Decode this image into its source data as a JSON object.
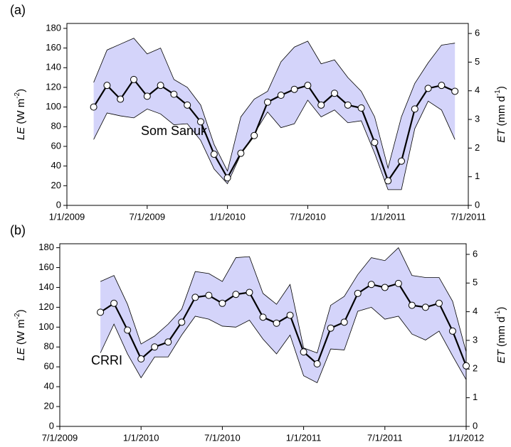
{
  "chart_data": [
    {
      "type": "line",
      "panel_label": "(a)",
      "annotation": "Som Sanuk",
      "ylabel": [
        "LE",
        " (W m",
        "-2",
        ")"
      ],
      "y2label": [
        "ET",
        " (mm d",
        "-1",
        ")"
      ],
      "xlim": [
        "1/1/2009",
        "7/1/2011"
      ],
      "xticks": [
        "1/1/2009",
        "7/1/2009",
        "1/1/2010",
        "7/1/2010",
        "1/1/2011",
        "7/1/2011"
      ],
      "ylim": [
        0,
        185
      ],
      "yticks": [
        0,
        20,
        40,
        60,
        80,
        100,
        120,
        140,
        160,
        180
      ],
      "y2lim": [
        0,
        6.35
      ],
      "y2ticks": [
        0,
        1,
        2,
        3,
        4,
        5,
        6
      ],
      "x": [
        "3/1/2009",
        "4/1/2009",
        "5/1/2009",
        "6/1/2009",
        "7/1/2009",
        "8/1/2009",
        "9/1/2009",
        "10/1/2009",
        "11/1/2009",
        "12/1/2009",
        "1/1/2010",
        "2/1/2010",
        "3/1/2010",
        "4/1/2010",
        "5/1/2010",
        "6/1/2010",
        "7/1/2010",
        "8/1/2010",
        "9/1/2010",
        "10/1/2010",
        "11/1/2010",
        "12/1/2010",
        "1/1/2011",
        "2/1/2011",
        "3/1/2011",
        "4/1/2011",
        "5/1/2011",
        "6/1/2011"
      ],
      "series": [
        {
          "color": "#000000",
          "values": [
            100,
            122,
            108,
            128,
            111,
            122,
            113,
            102,
            85,
            52,
            28,
            53,
            71,
            105,
            112,
            118,
            122,
            102,
            114,
            102,
            99,
            64,
            25,
            45,
            98,
            119,
            122,
            116
          ]
        }
      ],
      "band": {
        "color": "#d4d4fa",
        "upper": [
          125,
          158,
          164,
          170,
          154,
          160,
          128,
          120,
          102,
          62,
          35,
          90,
          108,
          116,
          146,
          161,
          167,
          144,
          148,
          130,
          116,
          90,
          38,
          90,
          124,
          145,
          163,
          165
        ],
        "lower": [
          67,
          94,
          91,
          89,
          98,
          93,
          82,
          83,
          66,
          37,
          22,
          52,
          73,
          95,
          79,
          83,
          107,
          90,
          97,
          84,
          86,
          53,
          16,
          16,
          78,
          106,
          97,
          67
        ]
      }
    },
    {
      "type": "line",
      "panel_label": "(b)",
      "annotation": "CRRI",
      "ylabel": [
        "LE",
        " (W m",
        "-2",
        ")"
      ],
      "y2label": [
        "ET",
        " (mm d",
        "-1",
        ")"
      ],
      "xlim": [
        "7/1/2009",
        "1/1/2012"
      ],
      "xticks": [
        "7/1/2009",
        "1/1/2010",
        "7/1/2010",
        "1/1/2011",
        "7/1/2011",
        "1/1/2012"
      ],
      "ylim": [
        0,
        184
      ],
      "yticks": [
        0,
        20,
        40,
        60,
        80,
        100,
        120,
        140,
        160,
        180
      ],
      "y2lim": [
        0,
        6.37
      ],
      "y2ticks": [
        0,
        1,
        2,
        3,
        4,
        5,
        6
      ],
      "x": [
        "10/1/2009",
        "11/1/2009",
        "12/1/2009",
        "1/1/2010",
        "2/1/2010",
        "3/1/2010",
        "4/1/2010",
        "5/1/2010",
        "6/1/2010",
        "7/1/2010",
        "8/1/2010",
        "9/1/2010",
        "10/1/2010",
        "11/1/2010",
        "12/1/2010",
        "1/1/2011",
        "2/1/2011",
        "3/1/2011",
        "4/1/2011",
        "5/1/2011",
        "6/1/2011",
        "7/1/2011",
        "8/1/2011",
        "9/1/2011",
        "10/1/2011",
        "11/1/2011",
        "12/1/2011",
        "1/1/2012"
      ],
      "series": [
        {
          "color": "#000000",
          "values": [
            115,
            124,
            97,
            68,
            80,
            85,
            105,
            130,
            132,
            124,
            133,
            135,
            110,
            104,
            112,
            75,
            63,
            99,
            105,
            134,
            143,
            140,
            144,
            122,
            120,
            124,
            96,
            61
          ]
        }
      ],
      "band": {
        "color": "#d4d4fa",
        "upper": [
          146,
          152,
          123,
          83,
          91,
          103,
          118,
          156,
          154,
          146,
          170,
          171,
          134,
          123,
          143,
          79,
          74,
          122,
          131,
          153,
          170,
          167,
          180,
          152,
          150,
          150,
          126,
          75
        ],
        "lower": [
          74,
          103,
          73,
          49,
          70,
          70,
          92,
          111,
          108,
          101,
          100,
          107,
          88,
          73,
          92,
          51,
          44,
          78,
          77,
          116,
          120,
          108,
          111,
          93,
          87,
          96,
          71,
          47
        ]
      }
    }
  ]
}
